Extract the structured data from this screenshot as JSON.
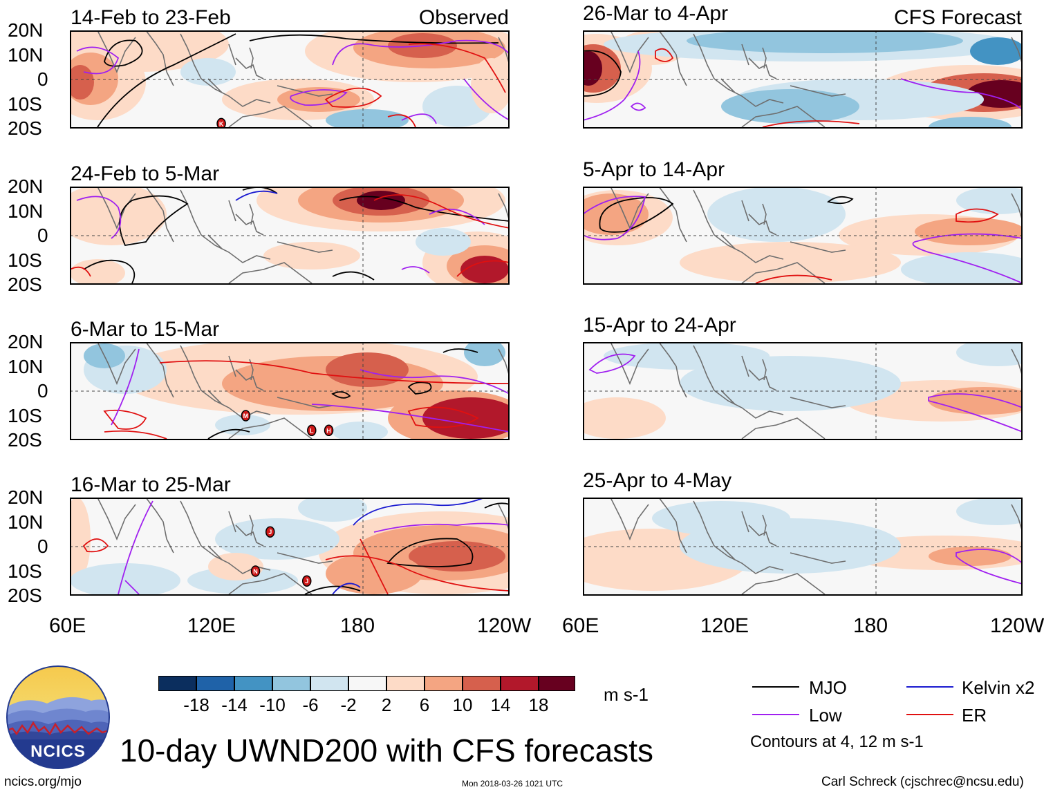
{
  "labels": {
    "observed": "Observed",
    "forecast": "CFS Forecast",
    "latitudes": [
      "20N",
      "10N",
      "0",
      "10S",
      "20S"
    ],
    "longitudes": [
      "60E",
      "120E",
      "180",
      "120W"
    ]
  },
  "panels": [
    {
      "title": "14-Feb to 23-Feb",
      "group": "Observed"
    },
    {
      "title": "24-Feb to 5-Mar",
      "group": "Observed"
    },
    {
      "title": "6-Mar to 15-Mar",
      "group": "Observed"
    },
    {
      "title": "16-Mar to 25-Mar",
      "group": "Observed"
    },
    {
      "title": "26-Mar to 4-Apr",
      "group": "CFS Forecast"
    },
    {
      "title": "5-Apr to 14-Apr",
      "group": "CFS Forecast"
    },
    {
      "title": "15-Apr to 24-Apr",
      "group": "CFS Forecast"
    },
    {
      "title": "25-Apr to 4-May",
      "group": "CFS Forecast"
    }
  ],
  "storm_markers": [
    {
      "panel": 0,
      "label": "K",
      "lon": 122,
      "lat": -18
    },
    {
      "panel": 2,
      "label": "M",
      "lon": 132,
      "lat": -10
    },
    {
      "panel": 2,
      "label": "L",
      "lon": 159,
      "lat": -16
    },
    {
      "panel": 2,
      "label": "H",
      "lon": 166,
      "lat": -16
    },
    {
      "panel": 3,
      "label": "J",
      "lon": 142,
      "lat": 6
    },
    {
      "panel": 3,
      "label": "N",
      "lon": 136,
      "lat": -10
    },
    {
      "panel": 3,
      "label": "J",
      "lon": 157,
      "lat": -14
    }
  ],
  "colorbar": {
    "ticks": [
      "-18",
      "-14",
      "-10",
      "-6",
      "-2",
      "2",
      "6",
      "10",
      "14",
      "18"
    ],
    "colors": [
      "#0b2e5e",
      "#1f62a8",
      "#4393c3",
      "#92c5de",
      "#d1e5f0",
      "#f7f7f7",
      "#fddbc7",
      "#f4a582",
      "#d6604d",
      "#b2182b",
      "#67001f"
    ],
    "units": "m s-1"
  },
  "title": "10-day UWND200 with CFS forecasts",
  "legend": {
    "items": [
      {
        "label": "MJO",
        "color": "#000000"
      },
      {
        "label": "Kelvin x2",
        "color": "#1a1ad0"
      },
      {
        "label": "Low",
        "color": "#a020f0"
      },
      {
        "label": "ER",
        "color": "#e01010"
      }
    ],
    "contour_note": "Contours at 4, 12 m s-1"
  },
  "logo": {
    "text": "NCICS"
  },
  "footer": {
    "left": "ncics.org/mjo",
    "center": "Mon 2018-03-26 1021 UTC",
    "right": "Carl Schreck (cjschrec@ncsu.edu)"
  }
}
